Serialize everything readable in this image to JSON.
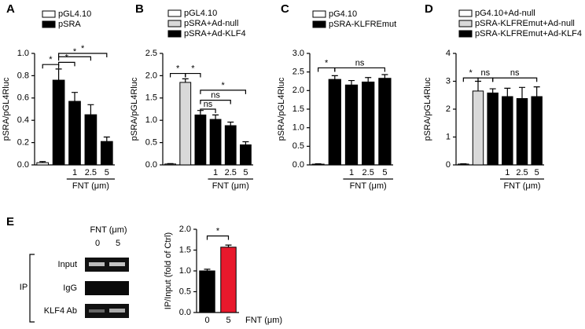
{
  "chart_data": [
    {
      "type": "bar",
      "panel": "A",
      "ylabel": "pSRA/pGL4Rluc",
      "xlabel": "FNT (μm)",
      "categories": [
        null,
        null,
        "1",
        "2.5",
        "5"
      ],
      "series": [
        {
          "name": "pGL4.10",
          "color": "#ffffff",
          "values": [
            0.02,
            null,
            null,
            null,
            null
          ],
          "errors": [
            0.01,
            null,
            null,
            null,
            null
          ]
        },
        {
          "name": "pSRA",
          "color": "#000000",
          "values": [
            null,
            0.76,
            0.57,
            0.45,
            0.21
          ],
          "errors": [
            null,
            0.1,
            0.08,
            0.09,
            0.04
          ]
        }
      ],
      "ylim": [
        0,
        1.0
      ],
      "yticks": [
        {
          "value": 0,
          "label": "0.0"
        },
        {
          "value": 0.2,
          "label": "0.2"
        },
        {
          "value": 0.4,
          "label": "0.4"
        },
        {
          "value": 0.6,
          "label": "0.6"
        },
        {
          "value": 0.8,
          "label": "0.8"
        },
        {
          "value": 1.0,
          "label": "1.0"
        }
      ],
      "annotations": [
        "*",
        "*",
        "*",
        "*"
      ]
    },
    {
      "type": "bar",
      "panel": "B",
      "ylabel": "pSRA/pGL4Rluc",
      "xlabel": "FNT (μm)",
      "categories": [
        null,
        null,
        null,
        "1",
        "2.5",
        "5"
      ],
      "series": [
        {
          "name": "pGL4.10",
          "color": "#ffffff",
          "values": [
            0.02,
            null,
            null,
            null,
            null,
            null
          ],
          "errors": [
            0.01,
            null,
            null,
            null,
            null,
            null
          ]
        },
        {
          "name": "pSRA+Ad-null",
          "color": "#d9d9d9",
          "values": [
            null,
            1.85,
            null,
            null,
            null,
            null
          ],
          "errors": [
            null,
            0.08,
            null,
            null,
            null,
            null
          ]
        },
        {
          "name": "pSRA+Ad-KLF4",
          "color": "#000000",
          "values": [
            null,
            null,
            1.12,
            1.02,
            0.88,
            0.45
          ],
          "errors": [
            null,
            null,
            0.1,
            0.1,
            0.08,
            0.07
          ]
        }
      ],
      "ylim": [
        0,
        2.5
      ],
      "yticks": [
        {
          "value": 0,
          "label": "0.0"
        },
        {
          "value": 0.5,
          "label": "0.5"
        },
        {
          "value": 1.0,
          "label": "1.0"
        },
        {
          "value": 1.5,
          "label": "1.5"
        },
        {
          "value": 2.0,
          "label": "2.0"
        },
        {
          "value": 2.5,
          "label": "2.5"
        }
      ],
      "annotations": [
        "*",
        "*",
        "ns",
        "ns",
        "*"
      ]
    },
    {
      "type": "bar",
      "panel": "C",
      "ylabel": "pSRA/pGL4Rluc",
      "xlabel": "FNT (μm)",
      "categories": [
        null,
        null,
        "1",
        "2.5",
        "5"
      ],
      "series": [
        {
          "name": "pG4.10",
          "color": "#ffffff",
          "values": [
            0.02,
            null,
            null,
            null,
            null
          ],
          "errors": [
            0.01,
            null,
            null,
            null,
            null
          ]
        },
        {
          "name": "pSRA-KLFREmut",
          "color": "#000000",
          "values": [
            null,
            2.3,
            2.15,
            2.23,
            2.33
          ],
          "errors": [
            null,
            0.1,
            0.12,
            0.12,
            0.1
          ]
        }
      ],
      "ylim": [
        0,
        3.0
      ],
      "yticks": [
        {
          "value": 0,
          "label": "0.0"
        },
        {
          "value": 0.5,
          "label": "0.5"
        },
        {
          "value": 1.0,
          "label": "1.0"
        },
        {
          "value": 1.5,
          "label": "1.5"
        },
        {
          "value": 2.0,
          "label": "2.0"
        },
        {
          "value": 2.5,
          "label": "2.5"
        },
        {
          "value": 3.0,
          "label": "3.0"
        }
      ],
      "annotations": [
        "*",
        "ns"
      ]
    },
    {
      "type": "bar",
      "panel": "D",
      "ylabel": "pSRA/pGL4Rluc",
      "xlabel": "FNT (μm)",
      "categories": [
        null,
        null,
        null,
        "1",
        "2.5",
        "5"
      ],
      "series": [
        {
          "name": "pG4.10+Ad-null",
          "color": "#ffffff",
          "values": [
            0.03,
            null,
            null,
            null,
            null,
            null
          ],
          "errors": [
            0.01,
            null,
            null,
            null,
            null,
            null
          ]
        },
        {
          "name": "pSRA-KLFREmut+Ad-null",
          "color": "#d9d9d9",
          "values": [
            null,
            2.65,
            null,
            null,
            null,
            null
          ],
          "errors": [
            null,
            0.35,
            null,
            null,
            null,
            null
          ]
        },
        {
          "name": "pSRA-KLFREmut+Ad-KLF4",
          "color": "#000000",
          "values": [
            null,
            null,
            2.58,
            2.45,
            2.38,
            2.45
          ],
          "errors": [
            null,
            null,
            0.15,
            0.3,
            0.4,
            0.35
          ]
        }
      ],
      "ylim": [
        0,
        4
      ],
      "yticks": [
        0,
        1,
        2,
        3,
        4
      ],
      "annotations": [
        "*",
        "ns",
        "ns"
      ]
    },
    {
      "type": "bar",
      "panel": "E",
      "ylabel": "IP/Input (fold of Ctrl)",
      "xlabel": "FNT (μm)",
      "categories": [
        "0",
        "5"
      ],
      "series": [
        {
          "color": "#000000",
          "values": [
            1.0,
            null
          ],
          "errors": [
            0.04,
            null
          ]
        },
        {
          "color": "#e8192c",
          "values": [
            null,
            1.57
          ],
          "errors": [
            null,
            0.05
          ]
        }
      ],
      "ylim": [
        0,
        2.0
      ],
      "yticks": [
        {
          "value": 0,
          "label": "0.0"
        },
        {
          "value": 0.5,
          "label": "0.5"
        },
        {
          "value": 1.0,
          "label": "1.0"
        },
        {
          "value": 1.5,
          "label": "1.5"
        },
        {
          "value": 2.0,
          "label": "2.0"
        }
      ],
      "annotations": [
        "*"
      ]
    }
  ],
  "gel_panel": {
    "header": "FNT (μm)",
    "lanes": [
      "0",
      "5"
    ],
    "rows": [
      "Input",
      "IgG",
      "KLF4 Ab"
    ],
    "group": "IP"
  }
}
